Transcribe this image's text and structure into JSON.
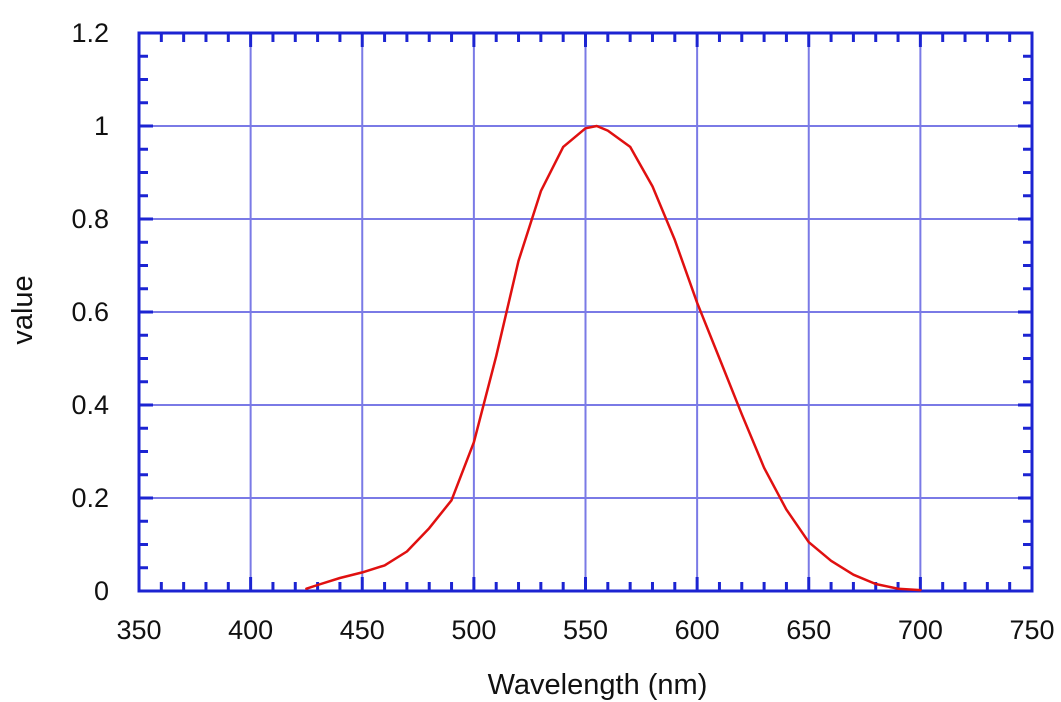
{
  "chart_data": {
    "type": "line",
    "title": "",
    "xlabel": "Wavelength (nm)",
    "ylabel": "value",
    "xlim": [
      350,
      750
    ],
    "ylim": [
      0,
      1.2
    ],
    "x_ticks": [
      "350",
      "400",
      "450",
      "500",
      "550",
      "600",
      "650",
      "700",
      "750"
    ],
    "y_ticks": [
      "0",
      "0.2",
      "0.4",
      "0.6",
      "0.8",
      "1",
      "1.2"
    ],
    "grid": true,
    "series": [
      {
        "x": [
          425,
          430,
          440,
          450,
          460,
          470,
          480,
          490,
          500,
          510,
          520,
          530,
          540,
          550,
          555,
          560,
          570,
          580,
          590,
          600,
          610,
          620,
          630,
          640,
          650,
          660,
          670,
          680,
          690,
          700
        ],
        "y": [
          0.005,
          0.013,
          0.028,
          0.04,
          0.055,
          0.085,
          0.135,
          0.195,
          0.32,
          0.505,
          0.71,
          0.86,
          0.955,
          0.995,
          1.0,
          0.99,
          0.955,
          0.87,
          0.755,
          0.62,
          0.5,
          0.38,
          0.265,
          0.175,
          0.105,
          0.065,
          0.035,
          0.015,
          0.005,
          0.002
        ],
        "color": "#e01010"
      }
    ],
    "colors": {
      "frame": "#1c24d2",
      "grid": "#7a7ae6",
      "line": "#e01010"
    }
  }
}
